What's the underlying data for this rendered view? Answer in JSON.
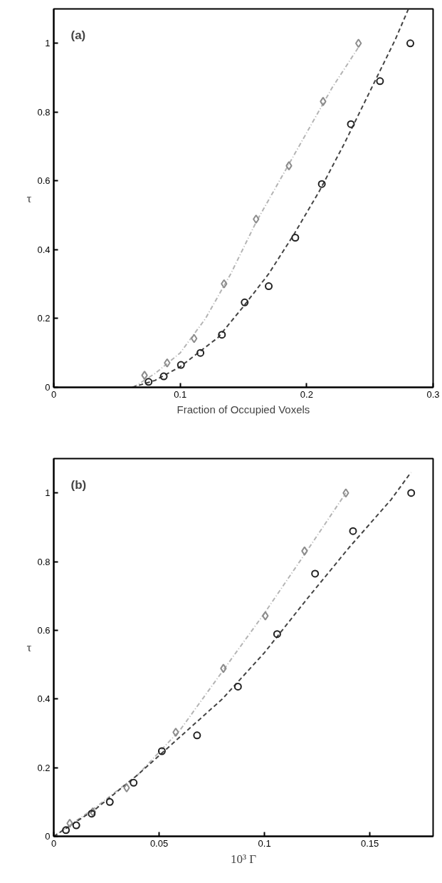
{
  "chart_data": [
    {
      "type": "scatter",
      "xlabel": "Fraction of Occupied Voxels",
      "ylabel": "τ",
      "annotations": [
        "(a)"
      ],
      "xlim": [
        0,
        0.3
      ],
      "ylim": [
        0,
        1.1
      ],
      "xticks": [
        0,
        0.1,
        0.2,
        0.3
      ],
      "yticks": [
        0,
        0.2,
        0.4,
        0.6,
        0.8,
        1
      ],
      "grid": false,
      "series": [
        {
          "type": "line",
          "line_style": "dashdot",
          "color": "#b4b4b4",
          "x": [
            0.063,
            0.08,
            0.1,
            0.12,
            0.14,
            0.16,
            0.18,
            0.2,
            0.22,
            0.243
          ],
          "values": [
            0,
            0.04,
            0.1,
            0.2,
            0.33,
            0.48,
            0.61,
            0.74,
            0.87,
            1.0
          ]
        },
        {
          "type": "line",
          "line_style": "dashed",
          "color": "#444444",
          "x": [
            0.062,
            0.08,
            0.1,
            0.13,
            0.15,
            0.17,
            0.19,
            0.21,
            0.23,
            0.25,
            0.27,
            0.2805
          ],
          "values": [
            0,
            0.02,
            0.06,
            0.145,
            0.235,
            0.33,
            0.445,
            0.57,
            0.71,
            0.86,
            1.01,
            1.1
          ]
        },
        {
          "marker": "diamond",
          "color": "#8c8c8c",
          "x": [
            0.0718,
            0.0897,
            0.111,
            0.1347,
            0.16,
            0.186,
            0.213,
            0.241
          ],
          "values": [
            0.035,
            0.071,
            0.142,
            0.301,
            0.489,
            0.644,
            0.831,
            1.0
          ]
        },
        {
          "marker": "circle",
          "color": "#222222",
          "x": [
            0.075,
            0.087,
            0.1006,
            0.116,
            0.133,
            0.151,
            0.17,
            0.191,
            0.212,
            0.235,
            0.258,
            0.282
          ],
          "values": [
            0.016,
            0.032,
            0.065,
            0.1,
            0.153,
            0.247,
            0.294,
            0.435,
            0.591,
            0.765,
            0.89,
            1.0
          ]
        }
      ]
    },
    {
      "type": "scatter",
      "xlabel": "10³ Γ",
      "ylabel": "τ",
      "annotations": [
        "(b)"
      ],
      "xlim": [
        0,
        0.18
      ],
      "ylim": [
        0,
        1.1
      ],
      "xticks": [
        0,
        0.05,
        0.1,
        0.15
      ],
      "yticks": [
        0,
        0.2,
        0.4,
        0.6,
        0.8,
        1
      ],
      "grid": false,
      "series": [
        {
          "type": "line",
          "line_style": "dashdot",
          "color": "#b4b4b4",
          "x": [
            0,
            0.02,
            0.04,
            0.06,
            0.08,
            0.1,
            0.12,
            0.1386
          ],
          "values": [
            0,
            0.085,
            0.18,
            0.31,
            0.48,
            0.65,
            0.83,
            1.0
          ]
        },
        {
          "type": "line",
          "line_style": "dashed",
          "color": "#444444",
          "x": [
            0,
            0.02,
            0.04,
            0.06,
            0.08,
            0.1,
            0.12,
            0.14,
            0.16,
            0.1695
          ],
          "values": [
            0,
            0.08,
            0.18,
            0.29,
            0.4,
            0.535,
            0.69,
            0.84,
            0.98,
            1.06
          ]
        },
        {
          "marker": "diamond",
          "color": "#8c8c8c",
          "x": [
            0.0076,
            0.0185,
            0.0346,
            0.0579,
            0.0805,
            0.1004,
            0.119,
            0.1386
          ],
          "values": [
            0.038,
            0.071,
            0.141,
            0.303,
            0.489,
            0.642,
            0.831,
            1.0
          ]
        },
        {
          "marker": "circle",
          "color": "#222222",
          "x": [
            0.0058,
            0.0107,
            0.018,
            0.0266,
            0.0379,
            0.0513,
            0.068,
            0.0874,
            0.106,
            0.124,
            0.142,
            0.1696
          ],
          "values": [
            0.018,
            0.032,
            0.066,
            0.1,
            0.156,
            0.248,
            0.294,
            0.436,
            0.589,
            0.765,
            0.889,
            1.0
          ]
        }
      ]
    }
  ]
}
